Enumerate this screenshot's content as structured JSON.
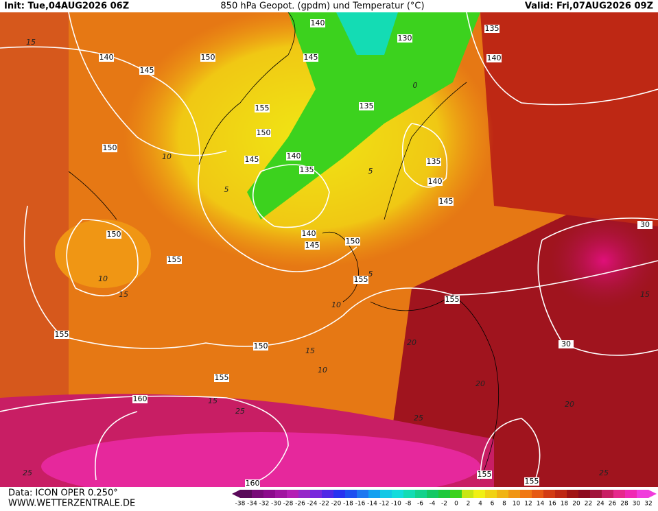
{
  "header": {
    "init": "Init: Tue,04AUG2026 06Z",
    "title": "850 hPa Geopot. (gpdm) und Temperatur (°C)",
    "valid": "Valid: Fri,07AUG2026 09Z"
  },
  "footer": {
    "data": "Data: ICON OPER 0.250°",
    "site": "WWW.WETTERZENTRALE.DE"
  },
  "geopotential_labels": [
    140,
    130,
    135,
    140,
    150,
    145,
    140,
    145,
    135,
    155,
    150,
    150,
    145,
    140,
    135,
    135,
    140,
    145,
    150,
    140,
    145,
    150,
    155,
    155,
    155,
    155,
    150,
    30,
    30,
    155,
    160,
    160,
    155,
    155
  ],
  "temperature_labels": [
    15,
    10,
    5,
    10,
    15,
    5,
    0,
    5,
    10,
    15,
    10,
    20,
    25,
    25,
    20,
    15,
    25,
    15,
    20,
    25
  ],
  "colorbar": {
    "ticks": [
      -38,
      -34,
      -32,
      -30,
      -28,
      -26,
      -24,
      -22,
      -20,
      -18,
      -16,
      -14,
      -12,
      -10,
      -8,
      -6,
      -4,
      -2,
      0,
      2,
      4,
      6,
      8,
      10,
      12,
      14,
      16,
      18,
      20,
      22,
      24,
      26,
      28,
      30,
      32
    ],
    "colors": [
      "#5a0a5a",
      "#780a78",
      "#8c0a8c",
      "#a014a0",
      "#b41eb4",
      "#9628c8",
      "#7828dc",
      "#5028e6",
      "#2832f0",
      "#1e50f0",
      "#1e78f0",
      "#14a0f0",
      "#14c8e6",
      "#14dcdc",
      "#14dcb4",
      "#14d28c",
      "#14c864",
      "#1ec83c",
      "#3cd21e",
      "#c8e614",
      "#f0f014",
      "#f0d214",
      "#f0b414",
      "#f09614",
      "#f07814",
      "#e65a14",
      "#d23c14",
      "#be2814",
      "#a01414",
      "#8c0a1e",
      "#a0143c",
      "#c81e64",
      "#e6288c",
      "#f028b4",
      "#f03cdc"
    ]
  }
}
